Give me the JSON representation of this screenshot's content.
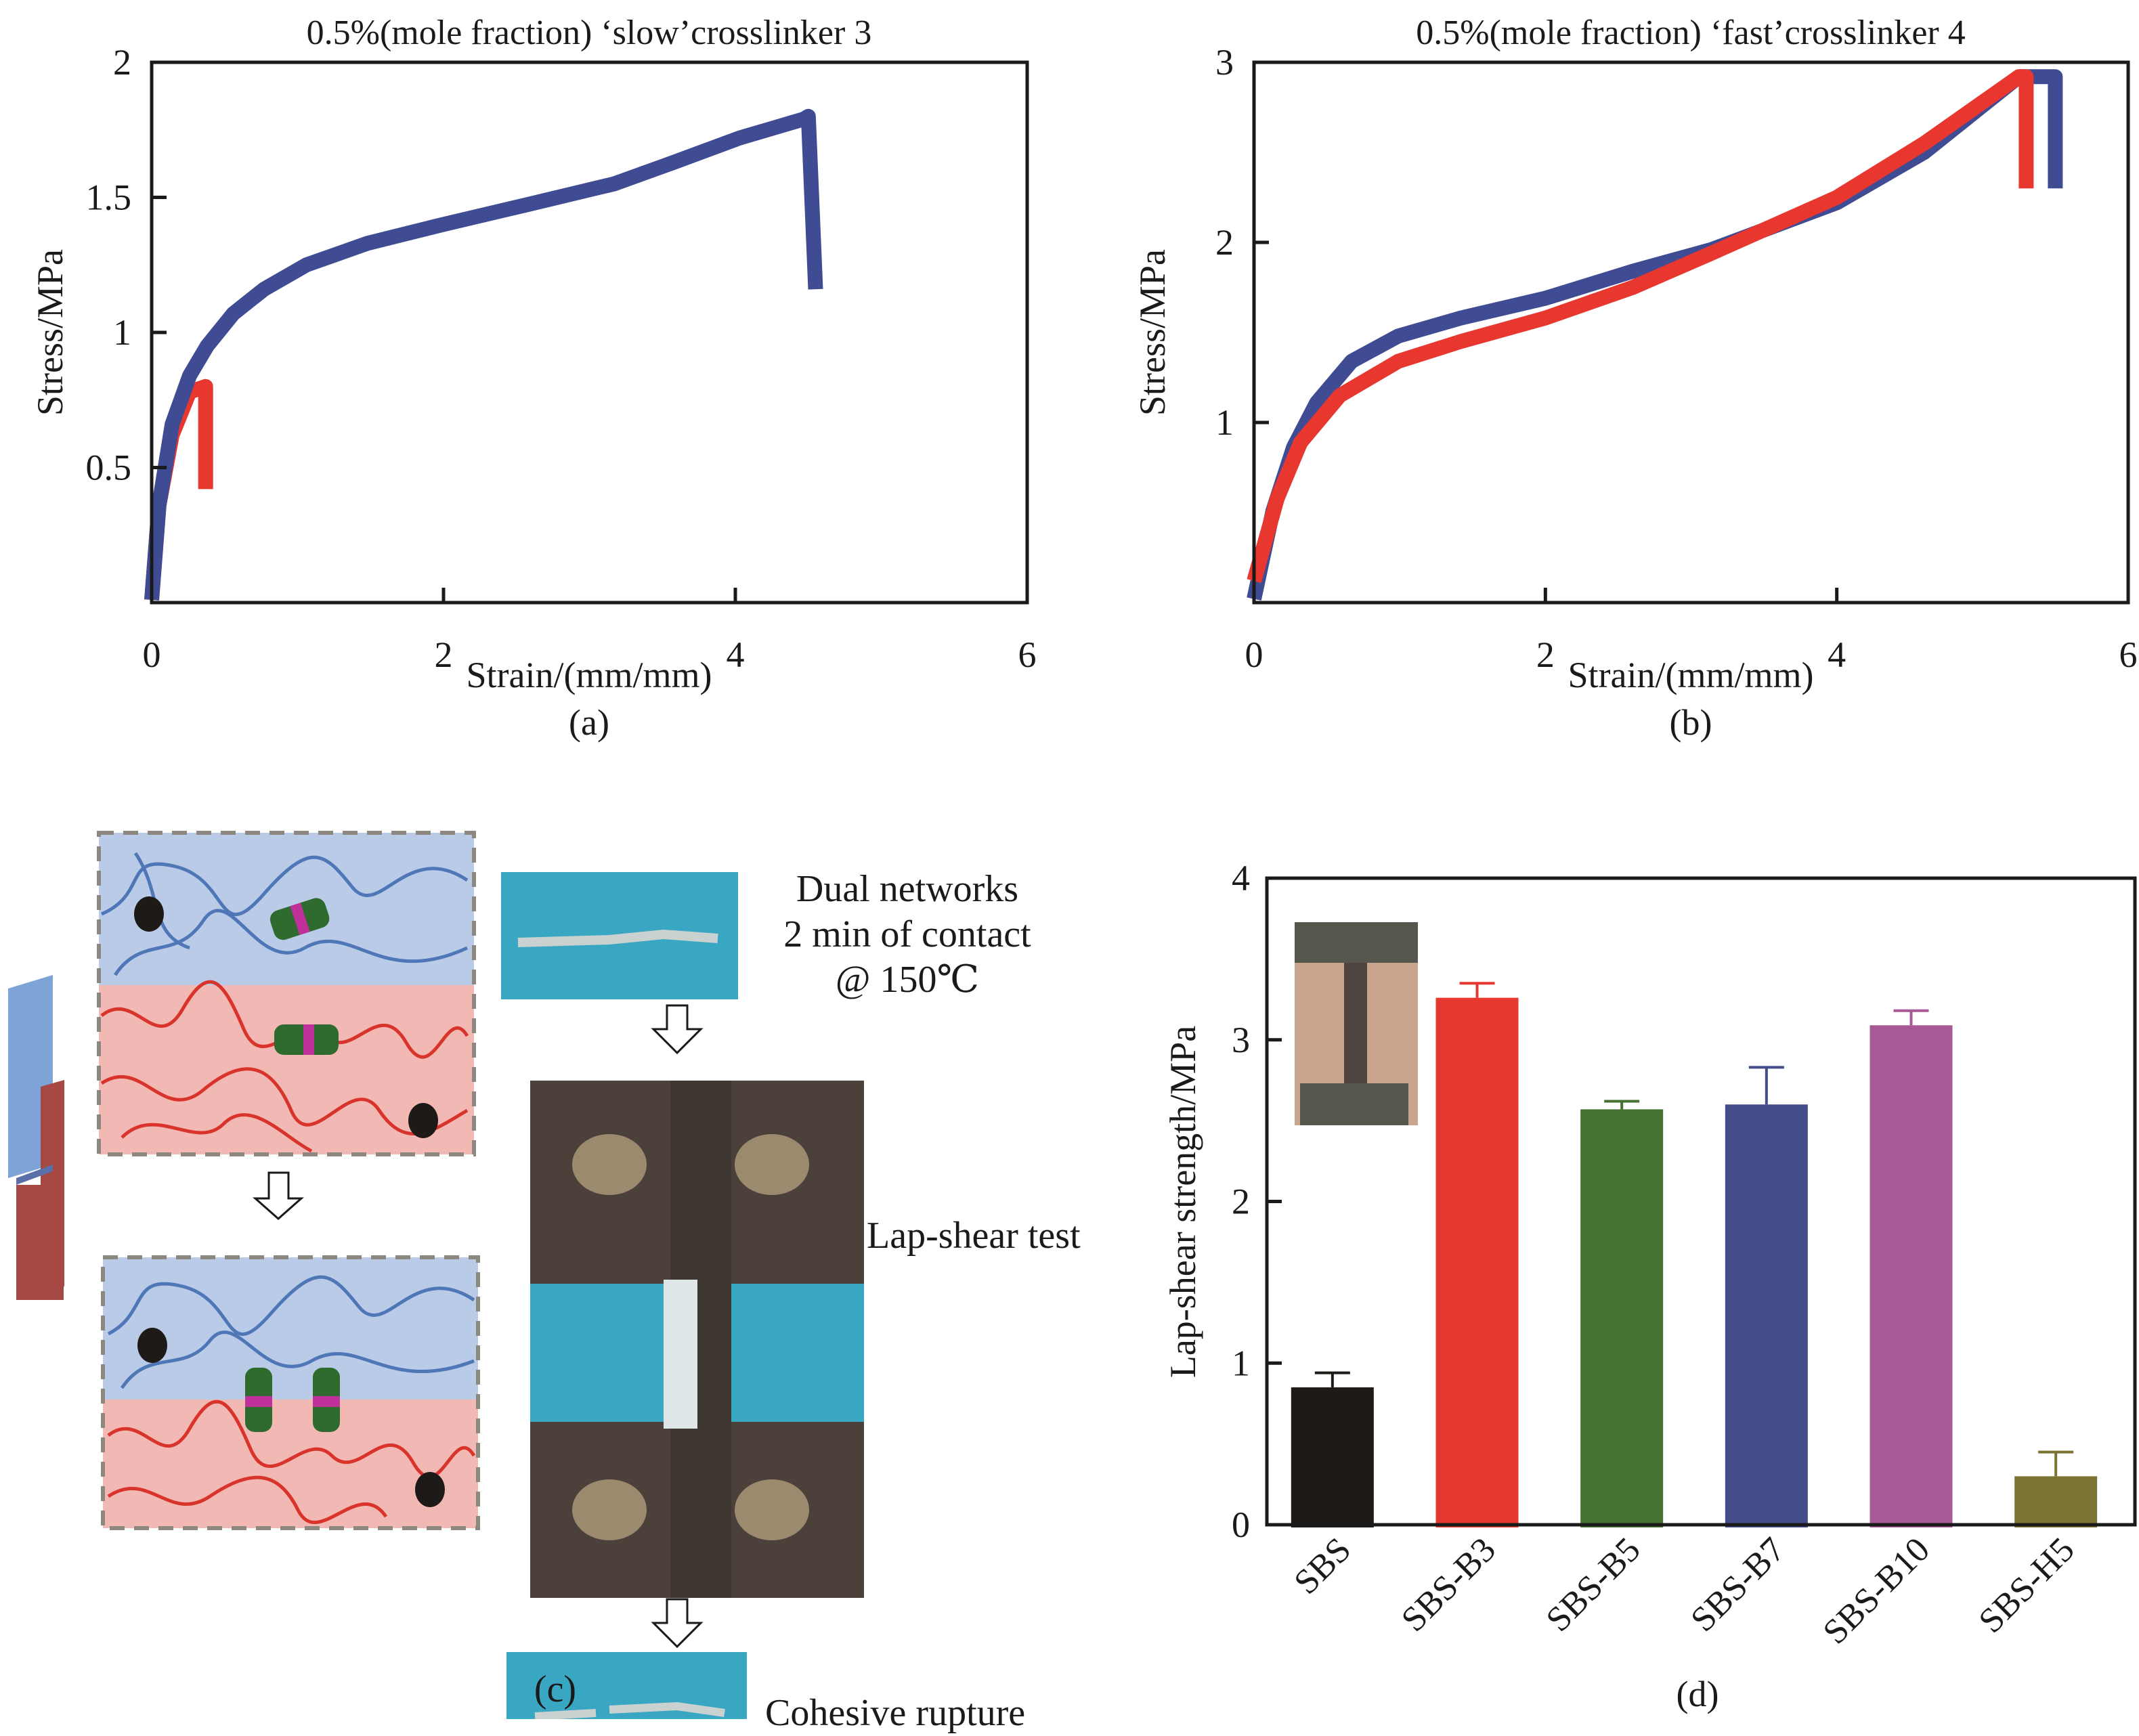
{
  "figure": {
    "panel_labels": {
      "a": "(a)",
      "b": "(b)",
      "c": "(c)",
      "d": "(d)"
    }
  },
  "chart_data": [
    {
      "id": "a",
      "type": "line",
      "title": "0.5%(mole fraction) ‘slow’crosslinker 3",
      "xlabel": "Strain/(mm/mm)",
      "ylabel": "Stress/MPa",
      "xlim": [
        0,
        6
      ],
      "ylim": [
        0,
        2
      ],
      "xticks": [
        0,
        2,
        4,
        6
      ],
      "xtick_labels": [
        "0",
        "2",
        "4",
        "6"
      ],
      "yticks": [
        0.5,
        1,
        1.5,
        2
      ],
      "ytick_labels": [
        "0.5",
        "1",
        "1.5",
        "2"
      ],
      "grid": false,
      "legend": "none",
      "series": [
        {
          "name": "red",
          "color": "#e8372f",
          "x": [
            0,
            0.05,
            0.14,
            0.26,
            0.37,
            0.37
          ],
          "y": [
            0.01,
            0.36,
            0.62,
            0.78,
            0.8,
            0.42
          ]
        },
        {
          "name": "blue",
          "color": "#3f4b93",
          "x": [
            0,
            0.05,
            0.14,
            0.26,
            0.38,
            0.56,
            0.77,
            1.06,
            1.48,
            2.0,
            2.55,
            3.17,
            3.58,
            4.03,
            4.47,
            4.5,
            4.55
          ],
          "y": [
            0.01,
            0.36,
            0.66,
            0.84,
            0.95,
            1.07,
            1.16,
            1.25,
            1.33,
            1.4,
            1.47,
            1.55,
            1.63,
            1.72,
            1.79,
            1.8,
            1.16
          ]
        }
      ]
    },
    {
      "id": "b",
      "type": "line",
      "title": "0.5%(mole fraction) ‘fast’crosslinker 4",
      "xlabel": "Strain/(mm/mm)",
      "ylabel": "Stress/MPa",
      "xlim": [
        0,
        6
      ],
      "ylim": [
        0,
        3
      ],
      "xticks": [
        0,
        2,
        4,
        6
      ],
      "xtick_labels": [
        "0",
        "2",
        "4",
        "6"
      ],
      "yticks": [
        1,
        2,
        3
      ],
      "ytick_labels": [
        "1",
        "2",
        "3"
      ],
      "grid": false,
      "legend": "none",
      "series": [
        {
          "name": "blue",
          "color": "#3f4b93",
          "x": [
            0,
            0.13,
            0.27,
            0.43,
            0.67,
            0.99,
            1.42,
            2.0,
            2.6,
            3.14,
            4.0,
            4.6,
            5.25,
            5.5,
            5.5
          ],
          "y": [
            0.02,
            0.51,
            0.86,
            1.11,
            1.34,
            1.48,
            1.58,
            1.69,
            1.84,
            1.96,
            2.22,
            2.5,
            2.92,
            2.92,
            2.3
          ]
        },
        {
          "name": "red",
          "color": "#e8372f",
          "x": [
            0,
            0.16,
            0.32,
            0.59,
            0.99,
            1.42,
            2.0,
            2.6,
            3.14,
            4.0,
            4.6,
            5.25,
            5.3,
            5.3
          ],
          "y": [
            0.12,
            0.58,
            0.89,
            1.15,
            1.34,
            1.45,
            1.58,
            1.75,
            1.94,
            2.25,
            2.55,
            2.92,
            2.92,
            2.3
          ]
        }
      ]
    },
    {
      "id": "d",
      "type": "bar",
      "title": "",
      "xlabel": "",
      "ylabel": "Lap-shear strength/MPa",
      "ylim": [
        0,
        4
      ],
      "yticks": [
        0,
        1,
        2,
        3,
        4
      ],
      "ytick_labels": [
        "0",
        "1",
        "2",
        "3",
        "4"
      ],
      "grid": false,
      "legend": "none",
      "categories": [
        "SBS",
        "SBS-B3",
        "SBS-B5",
        "SBS-B7",
        "SBS-B10",
        "SBS-H5"
      ],
      "values": [
        0.85,
        3.26,
        2.57,
        2.6,
        3.09,
        0.3
      ],
      "error_upper": [
        0.09,
        0.09,
        0.05,
        0.23,
        0.09,
        0.15
      ],
      "colors": [
        "#1e1a17",
        "#e5392f",
        "#457233",
        "#444d8a",
        "#a75995",
        "#7a7333"
      ],
      "inset": "photo of lap-shear specimen"
    }
  ],
  "panel_c": {
    "labels": {
      "dual_networks": [
        "Dual networks",
        "2 min of contact",
        "@ 150℃"
      ],
      "lap_shear": "Lap-shear test",
      "rupture": "Cohesive rupture"
    },
    "colors": {
      "blue_layer": "#b9cbe6",
      "red_layer": "#f2b8b4",
      "blue_chain": "#4f77b8",
      "red_chain": "#d9342b",
      "photo_bg": "#3aa7c2"
    }
  }
}
